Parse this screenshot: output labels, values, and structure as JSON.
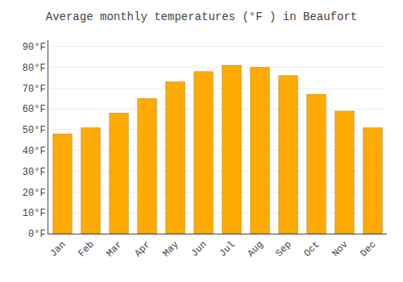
{
  "chart_data": {
    "type": "bar",
    "title": "Average monthly temperatures (°F ) in Beaufort",
    "categories": [
      "Jan",
      "Feb",
      "Mar",
      "Apr",
      "May",
      "Jun",
      "Jul",
      "Aug",
      "Sep",
      "Oct",
      "Nov",
      "Dec"
    ],
    "values": [
      48,
      51,
      58,
      65,
      73,
      78,
      81,
      80,
      76,
      67,
      59,
      51
    ],
    "color": "#FFAA00",
    "ylim": [
      0,
      93
    ],
    "yticks": [
      {
        "value": 0,
        "label": "0°F"
      },
      {
        "value": 10,
        "label": "10°F"
      },
      {
        "value": 20,
        "label": "20°F"
      },
      {
        "value": 30,
        "label": "30°F"
      },
      {
        "value": 40,
        "label": "40°F"
      },
      {
        "value": 50,
        "label": "50°F"
      },
      {
        "value": 60,
        "label": "60°F"
      },
      {
        "value": 70,
        "label": "70°F"
      },
      {
        "value": 80,
        "label": "80°F"
      },
      {
        "value": 90,
        "label": "90°F"
      }
    ],
    "grid": true
  }
}
